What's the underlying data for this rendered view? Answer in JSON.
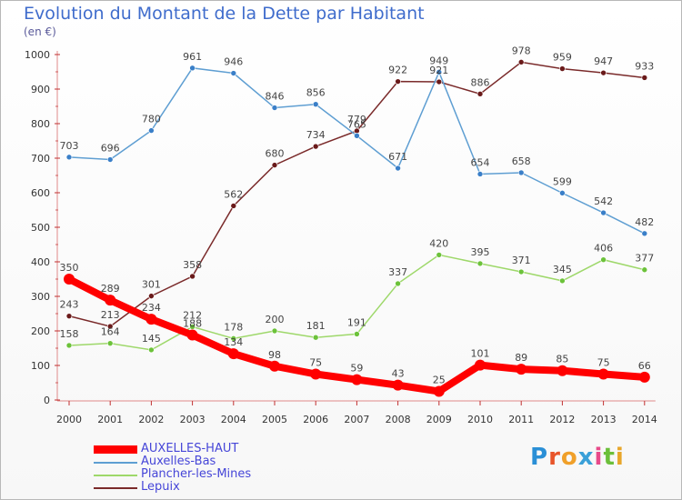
{
  "title": "Evolution du Montant de la Dette par Habitant",
  "unit": "(en €)",
  "logo": {
    "text": "Proxiti",
    "letters": [
      "P",
      "r",
      "o",
      "x",
      "i",
      "t",
      "i"
    ],
    "colors": [
      "#2a8fd6",
      "#e8552a",
      "#f0a02a",
      "#3aa0d8",
      "#e84a8a",
      "#6cbf3a",
      "#e8a62a"
    ]
  },
  "chart_data": {
    "type": "line",
    "x": [
      2000,
      2001,
      2002,
      2003,
      2004,
      2005,
      2006,
      2007,
      2008,
      2009,
      2010,
      2011,
      2012,
      2013,
      2014
    ],
    "x_tick_labels": [
      "2000",
      "2001",
      "2002",
      "2003",
      "2004",
      "2005",
      "2006",
      "2007",
      "2008",
      "2009",
      "2010",
      "2011",
      "2012",
      "2013",
      "2014"
    ],
    "ylim": [
      0,
      1000
    ],
    "y_ticks": [
      0,
      100,
      200,
      300,
      400,
      500,
      600,
      700,
      800,
      900,
      1000
    ],
    "y_tick_labels": [
      "0",
      "100",
      "200",
      "300",
      "400",
      "500",
      "600",
      "700",
      "800",
      "900",
      "1000"
    ],
    "grid": false,
    "legend_position": "bottom-left",
    "series": [
      {
        "name": "AUXELLES-HAUT",
        "color": "#ff0000",
        "bold": true,
        "values": [
          350,
          289,
          234,
          188,
          134,
          98,
          75,
          59,
          43,
          25,
          101,
          89,
          85,
          75,
          66
        ],
        "labels": [
          "350",
          "289",
          "234",
          "188",
          "134",
          "98",
          "75",
          "59",
          "43",
          "25",
          "101",
          "89",
          "85",
          "75",
          "66"
        ]
      },
      {
        "name": "Auxelles-Bas",
        "color": "#5e9ed2",
        "marker": "#3a7fc8",
        "values": [
          703,
          696,
          780,
          961,
          946,
          846,
          856,
          765,
          671,
          949,
          654,
          658,
          599,
          542,
          482
        ],
        "labels": [
          "703",
          "696",
          "780",
          "961",
          "946",
          "846",
          "856",
          "765",
          "671",
          "949",
          "654",
          "658",
          "599",
          "542",
          "482"
        ]
      },
      {
        "name": "Plancher-les-Mines",
        "color": "#9ed86a",
        "marker": "#6cc23a",
        "values": [
          158,
          164,
          145,
          212,
          178,
          200,
          181,
          191,
          337,
          420,
          395,
          371,
          345,
          406,
          377
        ],
        "labels": [
          "158",
          "164",
          "145",
          "212",
          "178",
          "200",
          "181",
          "191",
          "337",
          "420",
          "395",
          "371",
          "345",
          "406",
          "377"
        ]
      },
      {
        "name": "Lepuix",
        "color": "#7a2a2a",
        "marker": "#6a1a1a",
        "values": [
          243,
          213,
          301,
          358,
          562,
          680,
          734,
          779,
          922,
          921,
          886,
          978,
          959,
          947,
          933
        ],
        "labels": [
          "243",
          "213",
          "301",
          "358",
          "562",
          "680",
          "734",
          "779",
          "922",
          "921",
          "886",
          "978",
          "959",
          "947",
          "933"
        ]
      }
    ]
  }
}
